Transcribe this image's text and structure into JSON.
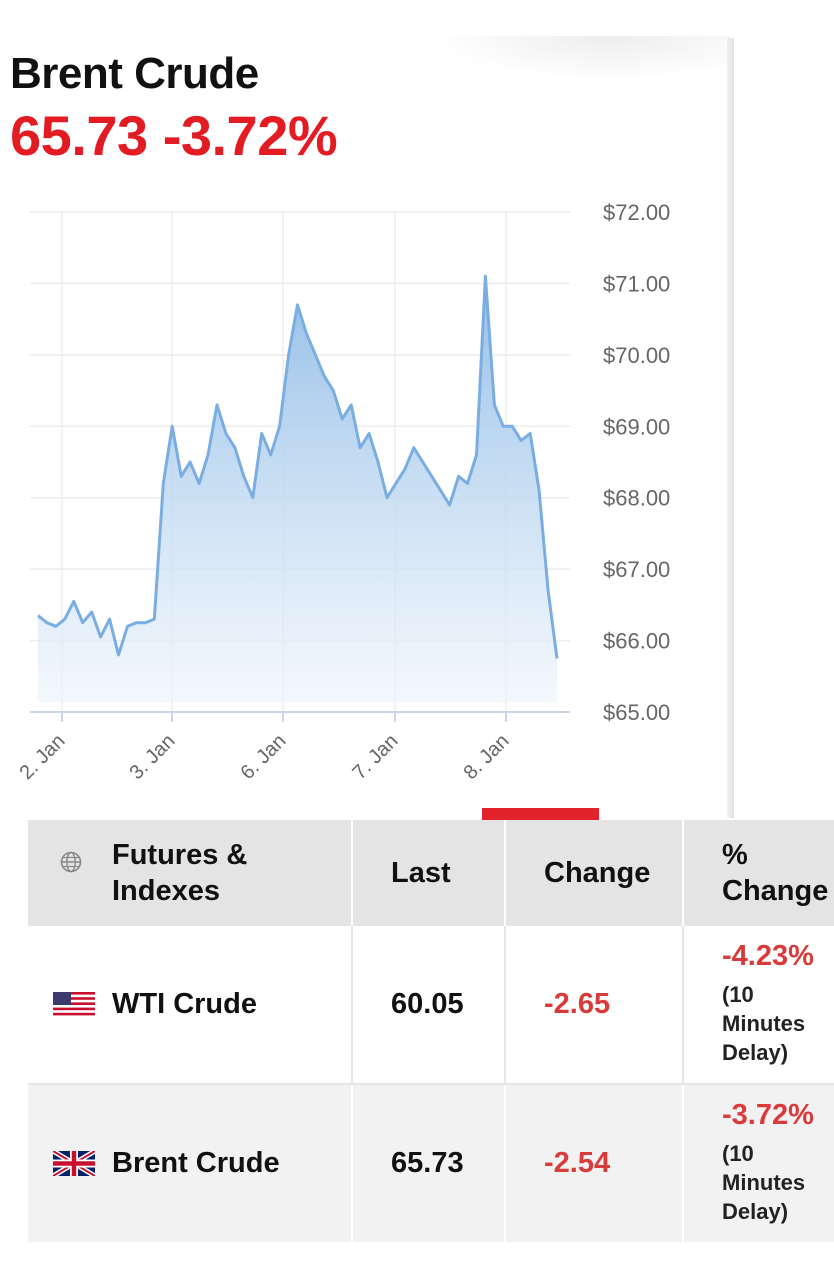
{
  "header": {
    "title": "Brent Crude",
    "price": "65.73",
    "change_pct": "-3.72%"
  },
  "colors": {
    "accent": "#e31b23",
    "negative": "#d93a3a",
    "line": "#7aaee3"
  },
  "chart_data": {
    "type": "area",
    "title": "",
    "xlabel": "",
    "ylabel": "",
    "ylim": [
      65.0,
      72.0
    ],
    "y_ticks": [
      "$72.00",
      "$71.00",
      "$70.00",
      "$69.00",
      "$68.00",
      "$67.00",
      "$66.00",
      "$65.00"
    ],
    "x_ticks": [
      "2. Jan",
      "3. Jan",
      "6. Jan",
      "7. Jan",
      "8. Jan"
    ],
    "grid": true,
    "legend": "none",
    "series": [
      {
        "values": [
          66.35,
          66.25,
          66.2,
          66.3,
          66.55,
          66.25,
          66.4,
          66.05,
          66.3,
          65.8,
          66.2,
          66.25,
          66.25,
          66.3,
          68.2,
          69.0,
          68.3,
          68.5,
          68.2,
          68.6,
          69.3,
          68.9,
          68.7,
          68.3,
          68.0,
          68.9,
          68.6,
          69.0,
          70.0,
          70.7,
          70.3,
          70.0,
          69.7,
          69.5,
          69.1,
          69.3,
          68.7,
          68.9,
          68.5,
          68.0,
          68.2,
          68.4,
          68.7,
          68.5,
          68.3,
          68.1,
          67.9,
          68.3,
          68.2,
          68.6,
          71.1,
          69.3,
          69.0,
          69.0,
          68.8,
          68.9,
          68.1,
          66.7,
          65.75
        ]
      }
    ]
  },
  "table": {
    "headers": {
      "name": "Futures & Indexes",
      "last": "Last",
      "change": "Change",
      "pct_change": "% Change"
    },
    "rows": [
      {
        "flag": "us-flag-icon",
        "name": "WTI Crude",
        "last": "60.05",
        "change": "-2.65",
        "pct": "-4.23%",
        "note": "(10 Minutes Delay)"
      },
      {
        "flag": "uk-flag-icon",
        "name": "Brent Crude",
        "last": "65.73",
        "change": "-2.54",
        "pct": "-3.72%",
        "note": "(10 Minutes Delay)"
      }
    ]
  }
}
